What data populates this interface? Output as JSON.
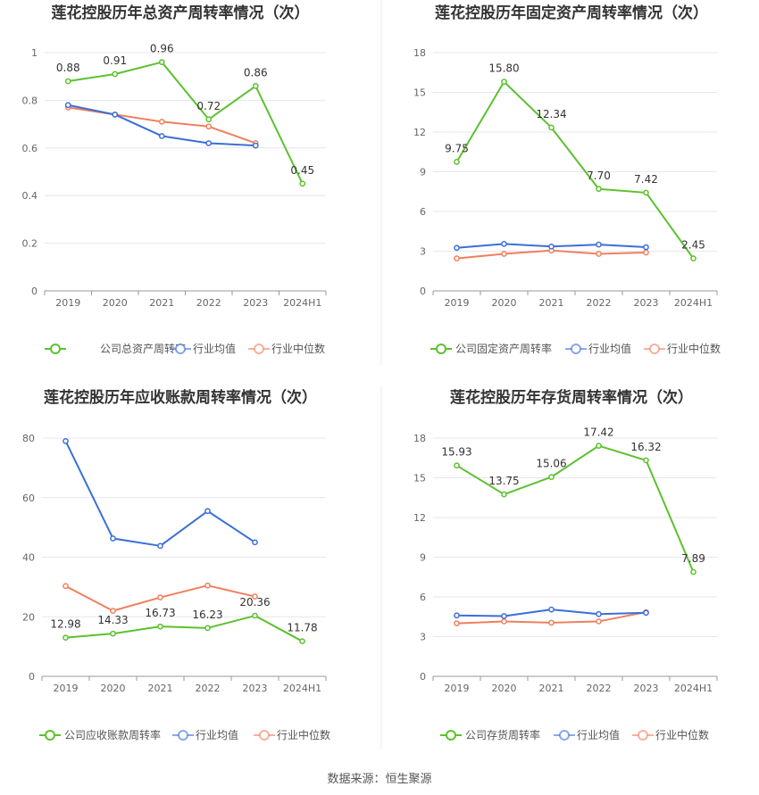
{
  "source_text": "数据来源：恒生聚源",
  "colors": {
    "company": "#5cc12f",
    "avg": "#3b6fd6",
    "median": "#f07f5e",
    "grid": "#e6e6ef",
    "axis": "#666666"
  },
  "chart_data": [
    {
      "type": "line",
      "title": "莲花控股历年总资产周转率情况（次）",
      "categories": [
        "2019",
        "2020",
        "2021",
        "2022",
        "2023",
        "2024H1"
      ],
      "ylim": [
        0,
        1
      ],
      "yticks": [
        "0",
        "0.2",
        "0.4",
        "0.6",
        "0.8",
        "1"
      ],
      "tick_values": [
        0,
        0.2,
        0.4,
        0.6,
        0.8,
        1
      ],
      "series": [
        {
          "name": "公司总资产周转率",
          "values": [
            0.88,
            0.91,
            0.96,
            0.72,
            0.86,
            0.45
          ],
          "labels": [
            "0.88",
            "0.91",
            "0.96",
            "0.72",
            "0.86",
            "0.45"
          ]
        },
        {
          "name": "行业均值",
          "values": [
            0.78,
            0.74,
            0.65,
            0.62,
            0.61,
            null
          ]
        },
        {
          "name": "行业中位数",
          "values": [
            0.77,
            0.74,
            0.71,
            0.69,
            0.62,
            null
          ]
        }
      ]
    },
    {
      "type": "line",
      "title": "莲花控股历年固定资产周转率情况（次）",
      "categories": [
        "2019",
        "2020",
        "2021",
        "2022",
        "2023",
        "2024H1"
      ],
      "ylim": [
        0,
        18
      ],
      "yticks": [
        "0",
        "3",
        "6",
        "9",
        "12",
        "15",
        "18"
      ],
      "tick_values": [
        0,
        3,
        6,
        9,
        12,
        15,
        18
      ],
      "series": [
        {
          "name": "公司固定资产周转率",
          "values": [
            9.75,
            15.8,
            12.34,
            7.7,
            7.42,
            2.45
          ],
          "labels": [
            "9.75",
            "15.80",
            "12.34",
            "7.70",
            "7.42",
            "2.45"
          ]
        },
        {
          "name": "行业均值",
          "values": [
            3.25,
            3.55,
            3.35,
            3.5,
            3.3,
            null
          ]
        },
        {
          "name": "行业中位数",
          "values": [
            2.45,
            2.8,
            3.05,
            2.8,
            2.9,
            null
          ]
        }
      ]
    },
    {
      "type": "line",
      "title": "莲花控股历年应收账款周转率情况（次）",
      "categories": [
        "2019",
        "2020",
        "2021",
        "2022",
        "2023",
        "2024H1"
      ],
      "ylim": [
        0,
        80
      ],
      "yticks": [
        "0",
        "20",
        "40",
        "60",
        "80"
      ],
      "tick_values": [
        0,
        20,
        40,
        60,
        80
      ],
      "series": [
        {
          "name": "公司应收账款周转率",
          "values": [
            12.98,
            14.33,
            16.73,
            16.23,
            20.36,
            11.78
          ],
          "labels": [
            "12.98",
            "14.33",
            "16.73",
            "16.23",
            "20.36",
            "11.78"
          ]
        },
        {
          "name": "行业均值",
          "values": [
            79,
            46.3,
            43.8,
            55.5,
            45,
            null
          ]
        },
        {
          "name": "行业中位数",
          "values": [
            30.3,
            22,
            26.5,
            30.5,
            26.8,
            null
          ]
        }
      ]
    },
    {
      "type": "line",
      "title": "莲花控股历年存货周转率情况（次）",
      "categories": [
        "2019",
        "2020",
        "2021",
        "2022",
        "2023",
        "2024H1"
      ],
      "ylim": [
        0,
        18
      ],
      "yticks": [
        "0",
        "3",
        "6",
        "9",
        "12",
        "15",
        "18"
      ],
      "tick_values": [
        0,
        3,
        6,
        9,
        12,
        15,
        18
      ],
      "series": [
        {
          "name": "公司存货周转率",
          "values": [
            15.93,
            13.75,
            15.06,
            17.42,
            16.32,
            7.89
          ],
          "labels": [
            "15.93",
            "13.75",
            "15.06",
            "17.42",
            "16.32",
            "7.89"
          ]
        },
        {
          "name": "行业均值",
          "values": [
            4.6,
            4.55,
            5.05,
            4.7,
            4.8,
            null
          ]
        },
        {
          "name": "行业中位数",
          "values": [
            4.0,
            4.15,
            4.05,
            4.15,
            4.85,
            null
          ]
        }
      ]
    }
  ]
}
